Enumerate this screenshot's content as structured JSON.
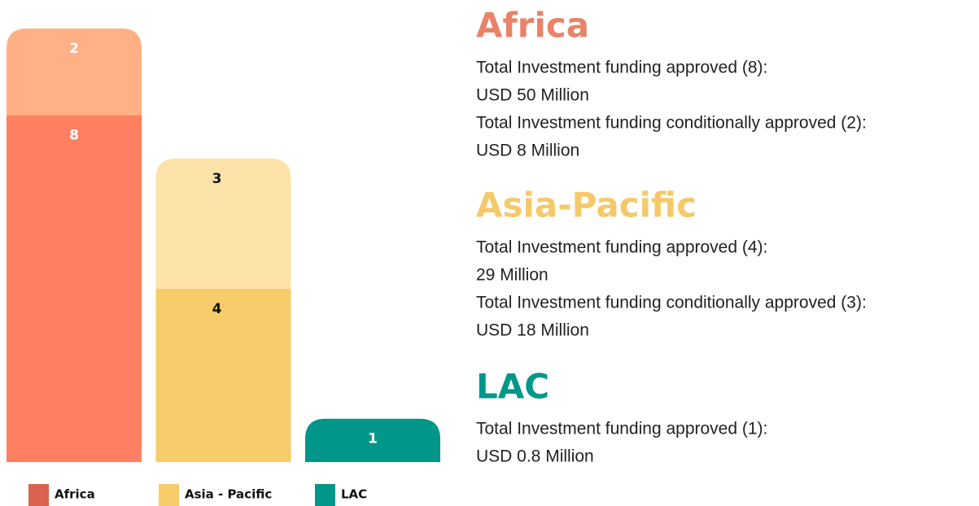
{
  "chart_data": {
    "type": "bar",
    "stacked": true,
    "categories": [
      "Africa",
      "Asia - Pacific",
      "LAC"
    ],
    "category_colors": [
      "#d9634e",
      "#f7cc6a",
      "#00968a"
    ],
    "series": [
      {
        "values": [
          8,
          4,
          1
        ],
        "colors": [
          "#ff7f61",
          "#f7cc6a",
          "#00968a"
        ],
        "label_colors": [
          "#ffffff",
          "#111111",
          "#ffffff"
        ]
      },
      {
        "values": [
          2,
          3,
          null
        ],
        "colors": [
          "#ffb185",
          "#fde3aa",
          "#00968a"
        ],
        "label_colors": [
          "#ffffff",
          "#111111",
          "#ffffff"
        ]
      }
    ]
  },
  "panel": {
    "sections": [
      {
        "title": "Africa",
        "color": "#e8836a",
        "lines": [
          "Total Investment funding approved (8):",
          "USD 50 Million",
          "Total Investment funding conditionally approved (2):",
          "USD 8 Million"
        ]
      },
      {
        "title": "Asia-Pacific",
        "color": "#f5c96a",
        "lines": [
          "Total Investment funding approved (4):",
          "29 Million",
          "Total Investment funding conditionally approved (3):",
          "USD 18 Million"
        ]
      },
      {
        "title": "LAC",
        "color": "#00968a",
        "lines": [
          "Total Investment funding approved (1):",
          "USD 0.8 Million"
        ]
      }
    ]
  }
}
